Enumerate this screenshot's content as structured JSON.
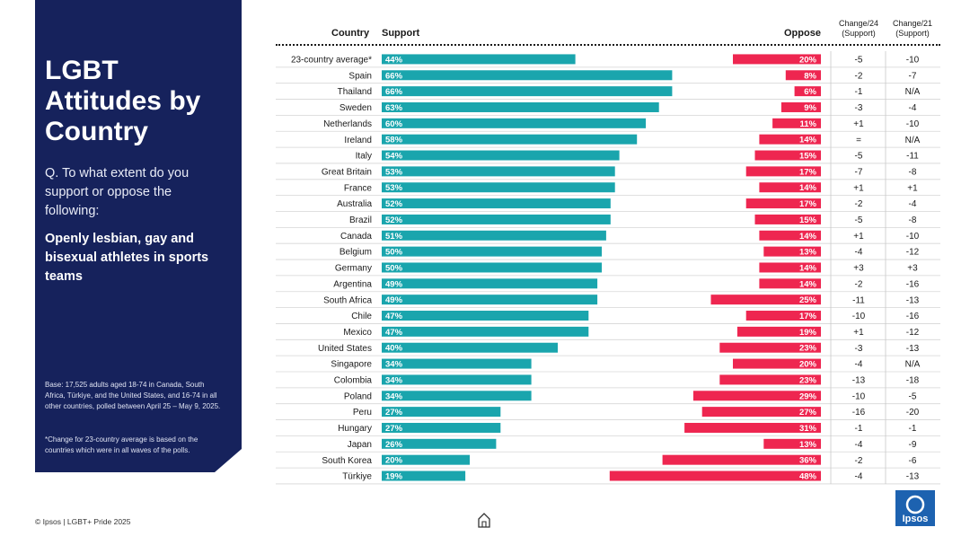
{
  "panel": {
    "title": "LGBT Attitudes by Country",
    "question": "Q. To what extent do you support or oppose the following:",
    "statement": "Openly lesbian, gay and bisexual athletes in sports teams",
    "base_note": "Base: 17,525 adults aged 18-74 in Canada, South Africa, Türkiye, and the United States, and 16-74 in all other countries, polled between April 25 – May 9, 2025.",
    "change_note": "*Change for 23-country average is based on the countries which were in all waves of the polls."
  },
  "headers": {
    "country": "Country",
    "support": "Support",
    "oppose": "Oppose",
    "change24_line1": "Change/24",
    "change24_line2": "(Support)",
    "change21_line1": "Change/21",
    "change21_line2": "(Support)"
  },
  "footer": {
    "text": "© Ipsos | LGBT+ Pride 2025",
    "logo_text": "Ipsos"
  },
  "colors": {
    "support": "#1aa5ad",
    "oppose": "#ee2650",
    "panel": "#16225c",
    "logo": "#1d62b0"
  },
  "icons": {
    "home": "home-icon"
  },
  "chart_data": {
    "type": "bar",
    "title": "LGBT Attitudes by Country",
    "orientation": "horizontal",
    "categories": [
      "23-country average*",
      "Spain",
      "Thailand",
      "Sweden",
      "Netherlands",
      "Ireland",
      "Italy",
      "Great Britain",
      "France",
      "Australia",
      "Brazil",
      "Canada",
      "Belgium",
      "Germany",
      "Argentina",
      "South Africa",
      "Chile",
      "Mexico",
      "United States",
      "Singapore",
      "Colombia",
      "Poland",
      "Peru",
      "Hungary",
      "Japan",
      "South Korea",
      "Türkiye"
    ],
    "series": [
      {
        "name": "Support",
        "values": [
          44,
          66,
          66,
          63,
          60,
          58,
          54,
          53,
          53,
          52,
          52,
          51,
          50,
          50,
          49,
          49,
          47,
          47,
          40,
          34,
          34,
          34,
          27,
          27,
          26,
          20,
          19
        ]
      },
      {
        "name": "Oppose",
        "values": [
          20,
          8,
          6,
          9,
          11,
          14,
          15,
          17,
          14,
          17,
          15,
          14,
          13,
          14,
          14,
          25,
          17,
          19,
          23,
          20,
          23,
          29,
          27,
          31,
          13,
          36,
          48
        ]
      }
    ],
    "change24": [
      "-5",
      "-2",
      "-1",
      "-3",
      "+1",
      "=",
      "-5",
      "-7",
      "+1",
      "-2",
      "-5",
      "+1",
      "-4",
      "+3",
      "-2",
      "-11",
      "-10",
      "+1",
      "-3",
      "-4",
      "-13",
      "-10",
      "-16",
      "-1",
      "-4",
      "-2",
      "-4"
    ],
    "change21": [
      "-10",
      "-7",
      "N/A",
      "-4",
      "-10",
      "N/A",
      "-11",
      "-8",
      "+1",
      "-4",
      "-8",
      "-10",
      "-12",
      "+3",
      "-16",
      "-13",
      "-16",
      "-12",
      "-13",
      "N/A",
      "-18",
      "-5",
      "-20",
      "-1",
      "-9",
      "-6",
      "-13"
    ],
    "value_suffix": "%",
    "xlim": [
      0,
      100
    ]
  }
}
